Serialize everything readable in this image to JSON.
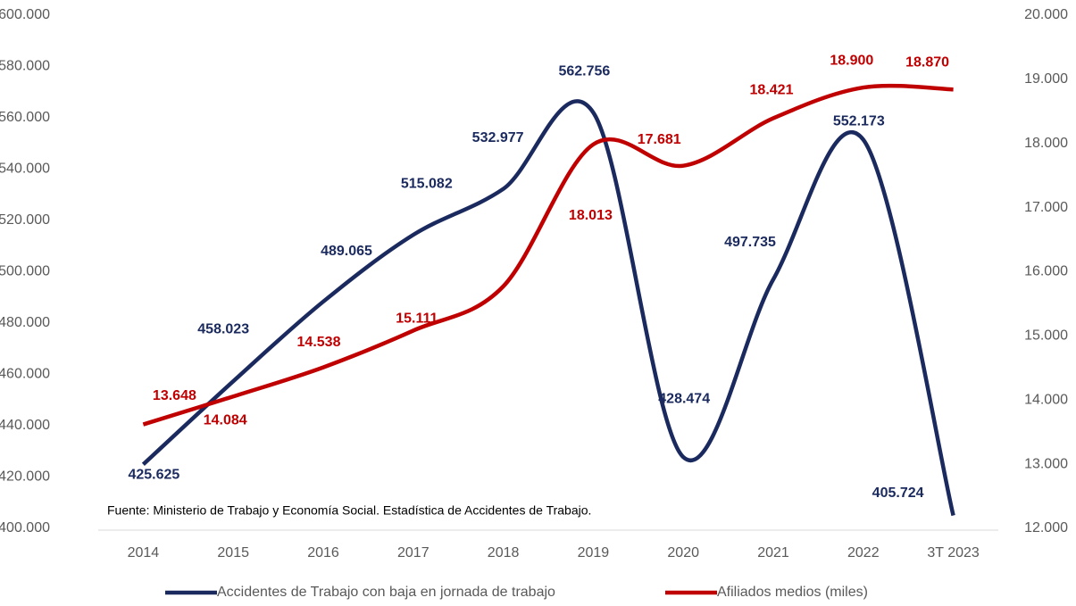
{
  "chart_data": {
    "type": "line",
    "categories": [
      "2014",
      "2015",
      "2016",
      "2017",
      "2018",
      "2019",
      "2020",
      "2021",
      "2022",
      "3T 2023"
    ],
    "series": [
      {
        "name": "Accidentes de Trabajo con baja en jornada de trabajo",
        "color": "#1b2a5e",
        "axis": "y",
        "values": [
          425625,
          458023,
          489065,
          515082,
          532977,
          562756,
          428474,
          497735,
          552173,
          405724
        ],
        "value_labels": [
          "425.625",
          "458.023",
          "489.065",
          "515.082",
          "532.977",
          "562.756",
          "428.474",
          "497.735",
          "552.173",
          "405.724"
        ]
      },
      {
        "name": "Afiliados medios (miles)",
        "color": "#c00000",
        "axis": "y2",
        "values": [
          13648,
          14084,
          14538,
          15111,
          15800,
          18013,
          17681,
          18421,
          18900,
          18870
        ],
        "value_labels": [
          "13.648",
          "14.084",
          "14.538",
          "15.111",
          null,
          "18.013",
          "17.681",
          "18.421",
          "18.900",
          "18.870"
        ]
      }
    ],
    "ylim": [
      400000,
      600000
    ],
    "yticks": [
      {
        "value": 400000,
        "label": "400.000"
      },
      {
        "value": 420000,
        "label": "420.000"
      },
      {
        "value": 440000,
        "label": "440.000"
      },
      {
        "value": 460000,
        "label": "460.000"
      },
      {
        "value": 480000,
        "label": "480.000"
      },
      {
        "value": 500000,
        "label": "500.000"
      },
      {
        "value": 520000,
        "label": "520.000"
      },
      {
        "value": 540000,
        "label": "540.000"
      },
      {
        "value": 560000,
        "label": "560.000"
      },
      {
        "value": 580000,
        "label": "580.000"
      },
      {
        "value": 600000,
        "label": "600.000"
      }
    ],
    "y2lim": [
      12000,
      20000
    ],
    "y2ticks": [
      {
        "value": 12000,
        "label": "12.000"
      },
      {
        "value": 13000,
        "label": "13.000"
      },
      {
        "value": 14000,
        "label": "14.000"
      },
      {
        "value": 15000,
        "label": "15.000"
      },
      {
        "value": 16000,
        "label": "16.000"
      },
      {
        "value": 17000,
        "label": "17.000"
      },
      {
        "value": 18000,
        "label": "18.000"
      },
      {
        "value": 19000,
        "label": "19.000"
      },
      {
        "value": 20000,
        "label": "20.000"
      }
    ],
    "annotation": "Fuente: Ministerio de Trabajo y Economía Social. Estadística de Accidentes de Trabajo.",
    "legend": "bottom",
    "grid": false
  }
}
